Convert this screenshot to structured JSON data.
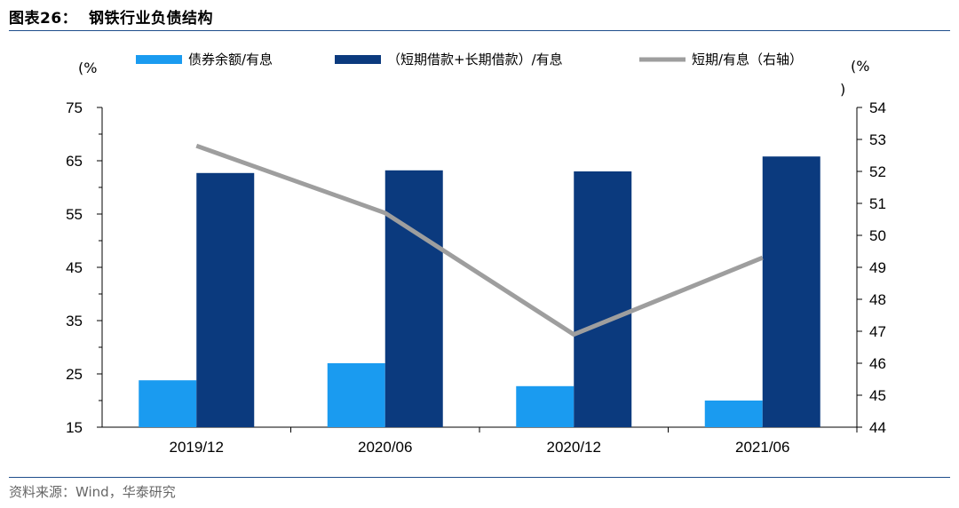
{
  "figure": {
    "title": "图表26：  钢铁行业负债结构",
    "source": "资料来源：Wind，华泰研究"
  },
  "chart_data": {
    "type": "bar",
    "categories": [
      "2019/12",
      "2020/06",
      "2020/12",
      "2021/06"
    ],
    "series": [
      {
        "name": "债券余额/有息",
        "type": "bar",
        "axis": "left",
        "color": "#1a9bf0",
        "values": [
          23.8,
          27.0,
          22.7,
          20.0
        ]
      },
      {
        "name": "（短期借款+长期借款）/有息",
        "type": "bar",
        "axis": "left",
        "color": "#0b3a7e",
        "values": [
          62.7,
          63.2,
          63.0,
          65.8
        ]
      },
      {
        "name": "短期/有息（右轴）",
        "type": "line",
        "axis": "right",
        "color": "#9e9e9e",
        "values": [
          52.8,
          50.7,
          46.9,
          49.3
        ]
      }
    ],
    "left_axis": {
      "unit": "(%",
      "min": 15,
      "max": 75,
      "ticks": [
        15,
        25,
        35,
        45,
        55,
        65,
        75
      ]
    },
    "right_axis": {
      "unit_line1": "(%",
      "unit_line2": ")",
      "min": 44,
      "max": 54,
      "ticks": [
        44,
        45,
        46,
        47,
        48,
        49,
        50,
        51,
        52,
        53,
        54
      ]
    },
    "legend_position": "top",
    "grid": false
  }
}
